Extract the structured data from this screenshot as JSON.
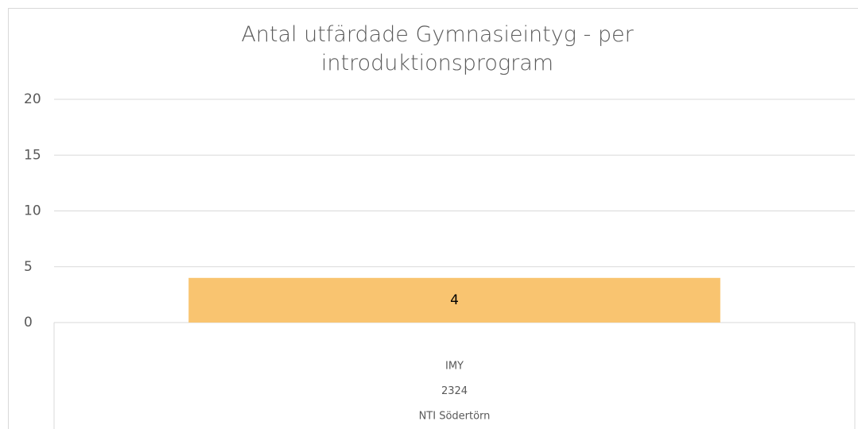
{
  "chart_data": {
    "type": "bar",
    "title": "Antal utfärdade Gymnasieintyg - per introduktionsprogram",
    "categories": [
      [
        "IMY",
        "2324",
        "NTI Södertörn"
      ]
    ],
    "values": [
      4
    ],
    "color": "#f9c470",
    "ylim": [
      0,
      20
    ],
    "yticks": [
      0,
      5,
      10,
      15,
      20
    ],
    "grid": true
  }
}
